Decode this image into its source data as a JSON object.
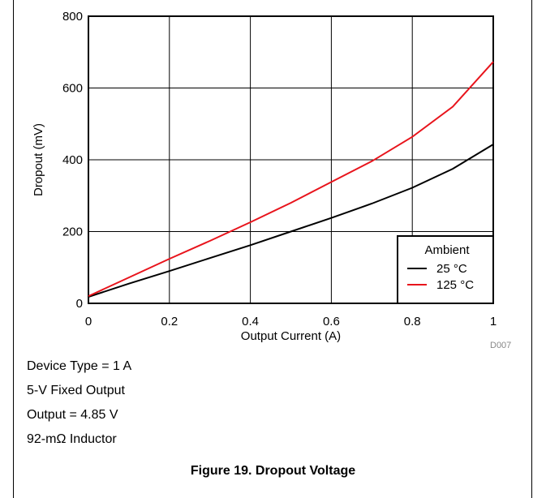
{
  "chart_data": {
    "type": "line",
    "xlabel": "Output Current (A)",
    "ylabel": "Dropout (mV)",
    "xlim": [
      0,
      1
    ],
    "ylim": [
      0,
      800
    ],
    "xticks": [
      "0",
      "0.2",
      "0.4",
      "0.6",
      "0.8",
      "1"
    ],
    "yticks": [
      "0",
      "200",
      "400",
      "600",
      "800"
    ],
    "grid": true,
    "legend": {
      "title": "Ambient",
      "placement": "bottom-right"
    },
    "series": [
      {
        "name": "25 °C",
        "color": "#000000",
        "x": [
          0,
          0.1,
          0.2,
          0.3,
          0.4,
          0.5,
          0.6,
          0.7,
          0.8,
          0.9,
          1.0
        ],
        "y": [
          18,
          55,
          90,
          126,
          162,
          200,
          238,
          278,
          322,
          375,
          443
        ]
      },
      {
        "name": "125 °C",
        "color": "#e8141c",
        "x": [
          0,
          0.1,
          0.2,
          0.3,
          0.4,
          0.5,
          0.6,
          0.7,
          0.8,
          0.9,
          1.0
        ],
        "y": [
          20,
          72,
          124,
          174,
          226,
          280,
          338,
          396,
          464,
          548,
          673
        ]
      }
    ]
  },
  "figure_code": "D007",
  "notes": [
    "Device Type = 1 A",
    "5-V Fixed Output",
    "Output = 4.85 V",
    "92-mΩ Inductor"
  ],
  "caption": "Figure 19. Dropout Voltage"
}
